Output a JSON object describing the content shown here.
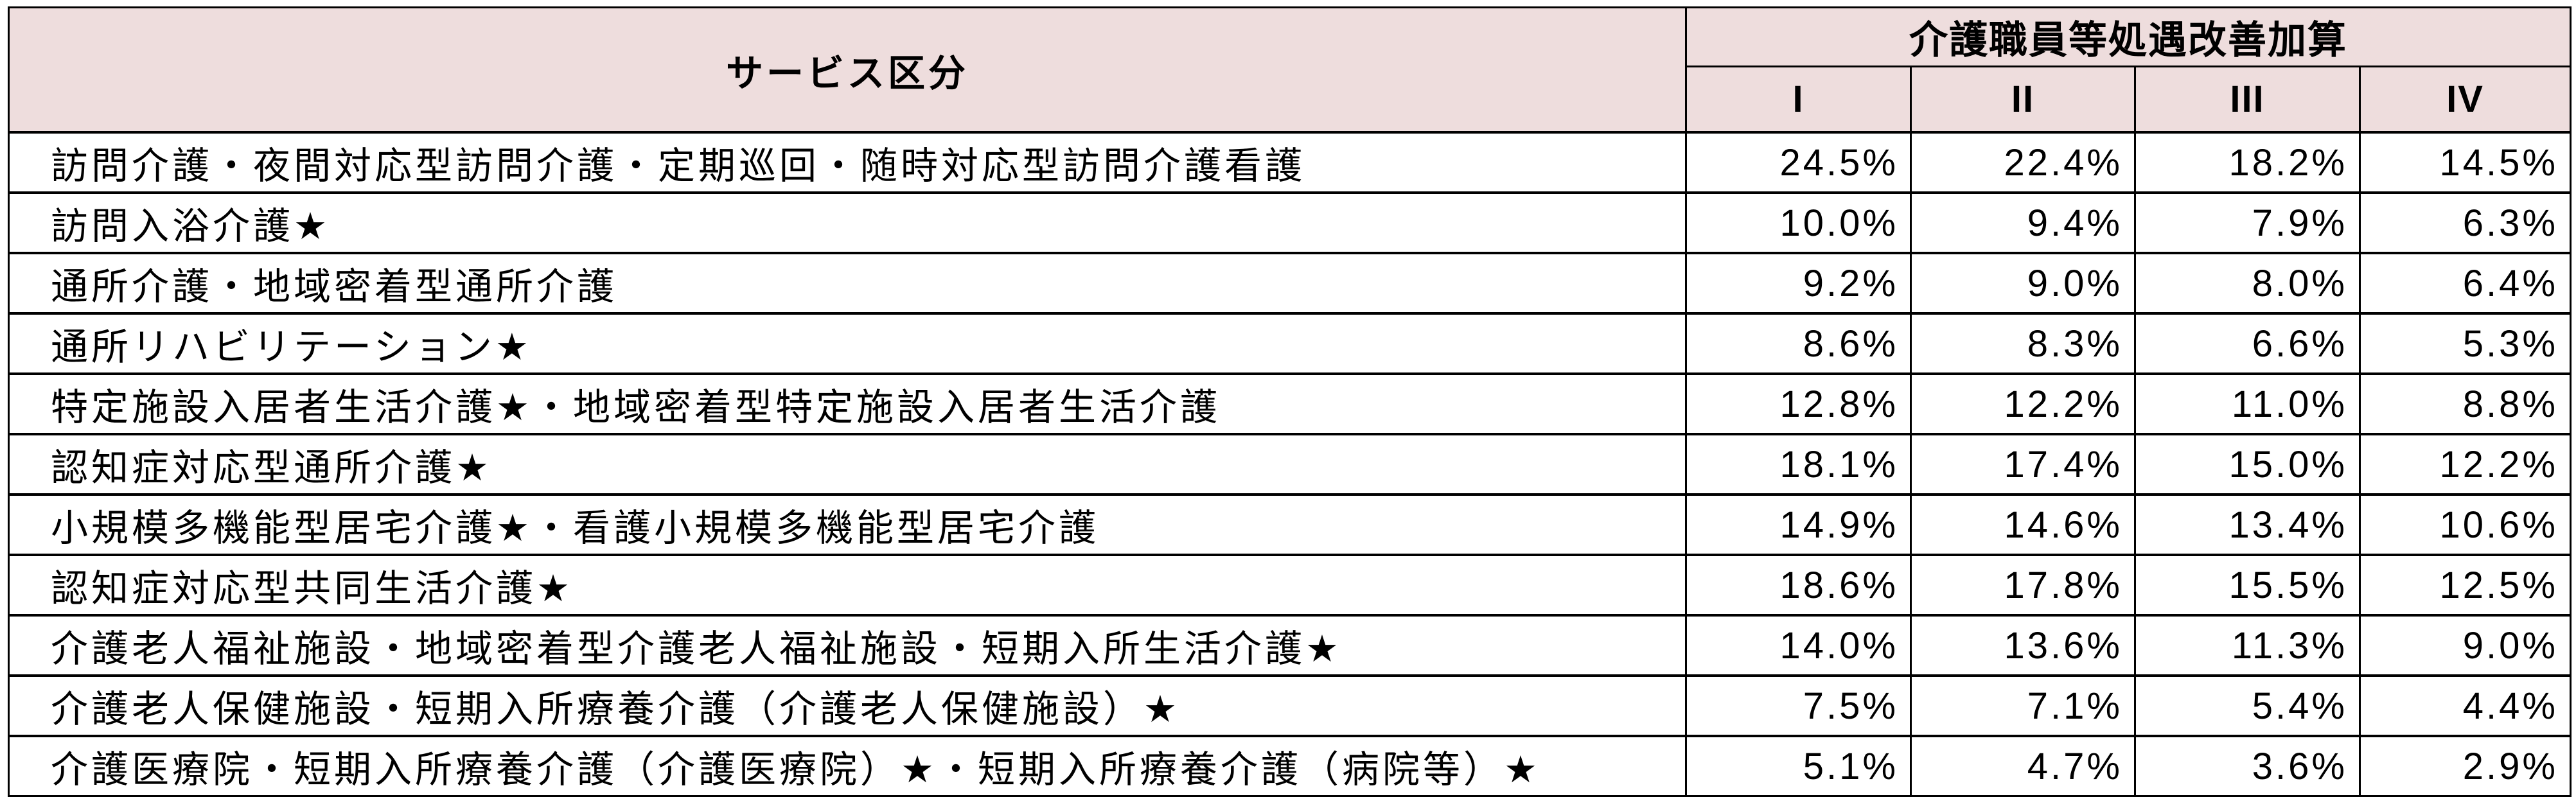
{
  "colors": {
    "header_bg": "#eedddd",
    "border": "#000000",
    "text": "#000000"
  },
  "table": {
    "header": {
      "service_col": "サービス区分",
      "group": "介護職員等処遇改善加算",
      "levels": [
        "I",
        "II",
        "III",
        "IV"
      ]
    },
    "rows": [
      {
        "service": "訪問介護・夜間対応型訪問介護・定期巡回・随時対応型訪問介護看護",
        "values": [
          "24.5%",
          "22.4%",
          "18.2%",
          "14.5%"
        ]
      },
      {
        "service": "訪問入浴介護★",
        "values": [
          "10.0%",
          "9.4%",
          "7.9%",
          "6.3%"
        ]
      },
      {
        "service": "通所介護・地域密着型通所介護",
        "values": [
          "9.2%",
          "9.0%",
          "8.0%",
          "6.4%"
        ]
      },
      {
        "service": "通所リハビリテーション★",
        "values": [
          "8.6%",
          "8.3%",
          "6.6%",
          "5.3%"
        ]
      },
      {
        "service": "特定施設入居者生活介護★・地域密着型特定施設入居者生活介護",
        "values": [
          "12.8%",
          "12.2%",
          "11.0%",
          "8.8%"
        ]
      },
      {
        "service": "認知症対応型通所介護★",
        "values": [
          "18.1%",
          "17.4%",
          "15.0%",
          "12.2%"
        ]
      },
      {
        "service": "小規模多機能型居宅介護★・看護小規模多機能型居宅介護",
        "values": [
          "14.9%",
          "14.6%",
          "13.4%",
          "10.6%"
        ]
      },
      {
        "service": "認知症対応型共同生活介護★",
        "values": [
          "18.6%",
          "17.8%",
          "15.5%",
          "12.5%"
        ]
      },
      {
        "service": "介護老人福祉施設・地域密着型介護老人福祉施設・短期入所生活介護★",
        "values": [
          "14.0%",
          "13.6%",
          "11.3%",
          "9.0%"
        ]
      },
      {
        "service": "介護老人保健施設・短期入所療養介護（介護老人保健施設）★",
        "values": [
          "7.5%",
          "7.1%",
          "5.4%",
          "4.4%"
        ]
      },
      {
        "service": "介護医療院・短期入所療養介護（介護医療院）★・短期入所療養介護（病院等）★",
        "values": [
          "5.1%",
          "4.7%",
          "3.6%",
          "2.9%"
        ]
      }
    ]
  }
}
